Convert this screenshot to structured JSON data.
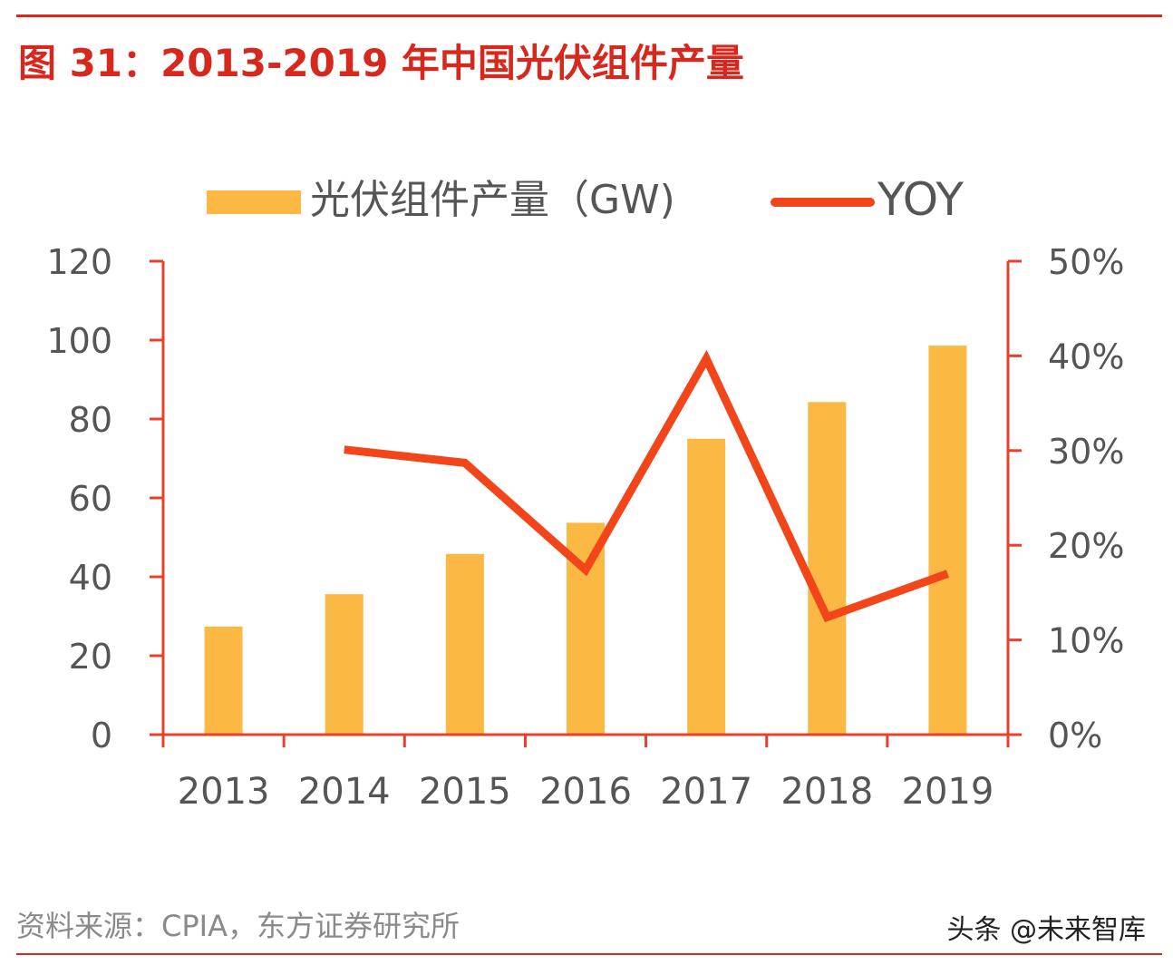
{
  "title": "图 31：2013-2019 年中国光伏组件产量",
  "source": "资料来源：CPIA，东方证券研究所",
  "watermark": "头条 @未来智库",
  "colors": {
    "bar": "#fbb944",
    "line": "#f2461a",
    "axis": "#e8402a",
    "title": "#d7281e"
  },
  "chart_data": {
    "type": "bar+line",
    "categories": [
      "2013",
      "2014",
      "2015",
      "2016",
      "2017",
      "2018",
      "2019"
    ],
    "series": [
      {
        "name": "光伏组件产量（GW)",
        "type": "bar",
        "axis": "left",
        "values": [
          27.4,
          35.6,
          45.8,
          53.7,
          75,
          84.3,
          98.6
        ]
      },
      {
        "name": "YOY",
        "type": "line",
        "axis": "right",
        "values": [
          null,
          30.1,
          28.7,
          17.4,
          39.7,
          12.4,
          17.0
        ]
      }
    ],
    "left_axis": {
      "range": [
        0,
        120
      ],
      "ticks": [
        "0",
        "20",
        "40",
        "60",
        "80",
        "100",
        "120"
      ]
    },
    "right_axis": {
      "range": [
        0,
        50
      ],
      "ticks": [
        "0%",
        "10%",
        "20%",
        "30%",
        "40%",
        "50%"
      ]
    },
    "grid": false,
    "legend": "top"
  }
}
